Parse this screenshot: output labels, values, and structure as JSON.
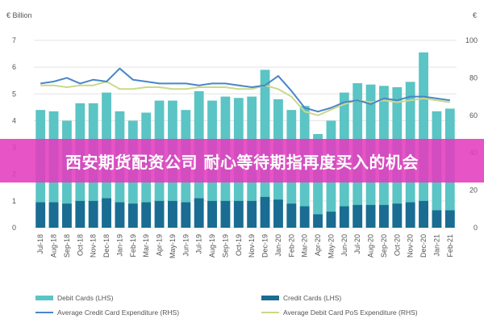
{
  "chart_data": {
    "type": "bar",
    "left_unit": "€ Billion",
    "right_unit": "€",
    "categories": [
      "Jul-18",
      "Aug-18",
      "Sep-18",
      "Oct-18",
      "Nov-18",
      "Dec-18",
      "Jan-19",
      "Feb-19",
      "Mar-19",
      "Apr-19",
      "May-19",
      "Jun-19",
      "Jul-19",
      "Aug-19",
      "Sep-19",
      "Oct-19",
      "Nov-19",
      "Dec-19",
      "Jan-20",
      "Feb-20",
      "Mar-20",
      "Apr-20",
      "May-20",
      "Jun-20",
      "Jul-20",
      "Aug-20",
      "Sep-20",
      "Oct-20",
      "Nov-20",
      "Dec-20",
      "Jan-21",
      "Feb-21"
    ],
    "y_left": {
      "min": 0,
      "max": 7,
      "ticks": [
        0,
        1,
        2,
        3,
        4,
        5,
        6,
        7
      ]
    },
    "y_right": {
      "min": 0,
      "max": 100,
      "ticks": [
        0,
        20,
        40,
        60,
        80,
        100
      ]
    },
    "series": [
      {
        "name": "Debit Cards (LHS)",
        "kind": "bar",
        "axis": "left",
        "color": "#5bc4c4",
        "values": [
          4.4,
          4.35,
          4.0,
          4.65,
          4.65,
          5.05,
          4.35,
          4.0,
          4.3,
          4.75,
          4.75,
          4.4,
          5.1,
          4.75,
          4.9,
          4.85,
          4.9,
          5.9,
          4.8,
          4.4,
          4.55,
          3.5,
          4.0,
          5.05,
          5.4,
          5.35,
          5.3,
          5.25,
          5.45,
          6.55,
          4.35,
          4.45
        ]
      },
      {
        "name": "Credit Cards (LHS)",
        "kind": "bar",
        "axis": "left",
        "color": "#1a6c92",
        "values": [
          0.95,
          0.95,
          0.9,
          1.0,
          1.0,
          1.1,
          0.95,
          0.9,
          0.95,
          1.0,
          1.0,
          0.95,
          1.1,
          1.0,
          1.0,
          1.0,
          1.0,
          1.15,
          1.05,
          0.9,
          0.8,
          0.5,
          0.6,
          0.8,
          0.85,
          0.85,
          0.85,
          0.9,
          0.95,
          1.0,
          0.65,
          0.65
        ]
      },
      {
        "name": "Average Credit Card Expenditure (RHS)",
        "kind": "line",
        "axis": "right",
        "color": "#4a86c8",
        "values": [
          77,
          78,
          80,
          77,
          79,
          78,
          85,
          79,
          78,
          77,
          77,
          77,
          76,
          77,
          77,
          76,
          75,
          76,
          81,
          73,
          64,
          62,
          64,
          67,
          68,
          66,
          69,
          68,
          70,
          70,
          69,
          68
        ]
      },
      {
        "name": "Average Debit Card PoS Expenditure (RHS)",
        "kind": "line",
        "axis": "right",
        "color": "#c9d98a",
        "values": [
          76,
          76,
          75,
          76,
          76,
          78,
          74,
          74,
          75,
          75,
          74,
          74,
          75,
          75,
          75,
          74,
          74,
          76,
          74,
          70,
          62,
          60,
          63,
          66,
          68,
          67,
          68,
          67,
          68,
          69,
          68,
          67
        ]
      }
    ]
  },
  "banner": {
    "text": "西安期货配资公司 耐心等待期指再度买入的机会"
  }
}
